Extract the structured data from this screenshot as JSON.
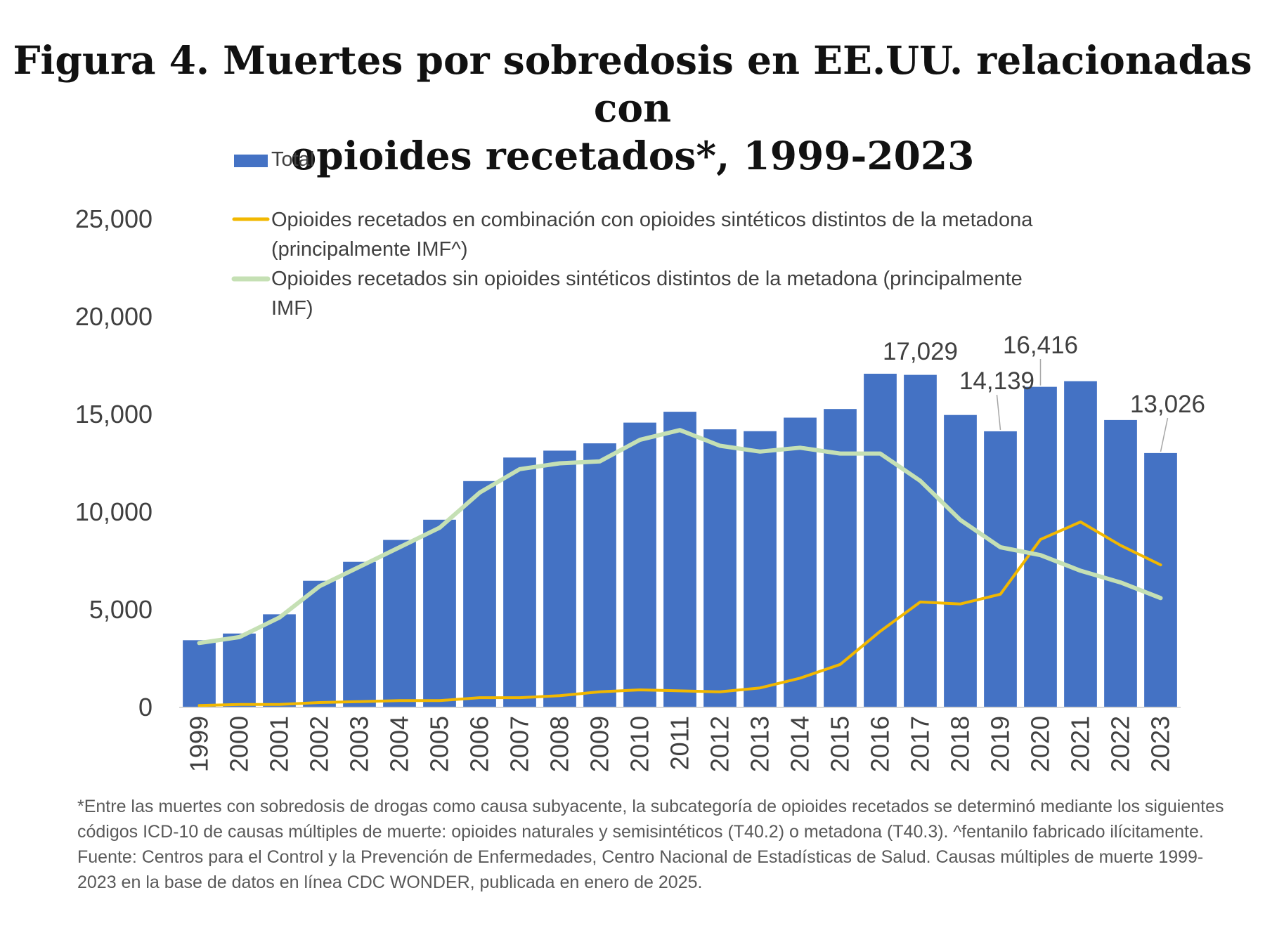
{
  "title_lines": [
    "Figura 4. Muertes por sobredosis en EE.UU. relacionadas con",
    "opioides recetados*, 1999-2023"
  ],
  "footnote": "*Entre las muertes con sobredosis de drogas como causa subyacente, la subcategoría de opioides recetados se determinó mediante los siguientes códigos ICD-10 de causas múltiples de muerte: opioides naturales y semisintéticos (T40.2) o metadona (T40.3). ^fentanilo fabricado ilícitamente.",
  "source": "Fuente: Centros para el Control y la Prevención de Enfermedades, Centro Nacional de Estadísticas de Salud. Causas múltiples de muerte 1999-2023 en la base de datos en línea CDC WONDER, publicada en enero de 2025.",
  "chart_data": {
    "type": "bar",
    "categories": [
      "1999",
      "2000",
      "2001",
      "2002",
      "2003",
      "2004",
      "2005",
      "2006",
      "2007",
      "2008",
      "2009",
      "2010",
      "2011",
      "2012",
      "2013",
      "2014",
      "2015",
      "2016",
      "2017",
      "2018",
      "2019",
      "2020",
      "2021",
      "2022",
      "2023"
    ],
    "ylim": [
      0,
      25000
    ],
    "y_ticks": [
      0,
      5000,
      10000,
      15000,
      20000,
      25000
    ],
    "y_tick_labels": [
      "0",
      "5,000",
      "10,000",
      "15,000",
      "20,000",
      "25,000"
    ],
    "grid": false,
    "legend_position": "top",
    "series": [
      {
        "name": "Total",
        "type": "bar",
        "color": "#4472c4",
        "values": [
          3442,
          3785,
          4770,
          6485,
          7456,
          8577,
          9612,
          11589,
          12796,
          13149,
          13523,
          14583,
          15140,
          14240,
          14145,
          14838,
          15281,
          17087,
          17029,
          14975,
          14139,
          16416,
          16706,
          14716,
          13026
        ]
      },
      {
        "name": "Opioides recetados en combinación con opioides sintéticos distintos de la metadona (principalmente IMF^)",
        "type": "line",
        "color": "#f2b800",
        "values": [
          100,
          150,
          150,
          250,
          300,
          350,
          350,
          500,
          500,
          600,
          800,
          900,
          850,
          800,
          1000,
          1500,
          2200,
          3900,
          5400,
          5300,
          5800,
          8600,
          9500,
          8300,
          7300
        ]
      },
      {
        "name": "Opioides recetados sin opioides sintéticos distintos de la metadona (principalmente IMF)",
        "type": "line",
        "color": "#c5e0b4",
        "values": [
          3300,
          3600,
          4600,
          6200,
          7200,
          8200,
          9200,
          11000,
          12200,
          12500,
          12600,
          13700,
          14200,
          13400,
          13100,
          13300,
          13000,
          13000,
          11600,
          9600,
          8200,
          7800,
          7000,
          6400,
          5600
        ]
      }
    ],
    "annotations": [
      {
        "text": "17,029",
        "category": "2017"
      },
      {
        "text": "14,139",
        "category": "2019"
      },
      {
        "text": "16,416",
        "category": "2020"
      },
      {
        "text": "13,026",
        "category": "2023"
      }
    ]
  }
}
